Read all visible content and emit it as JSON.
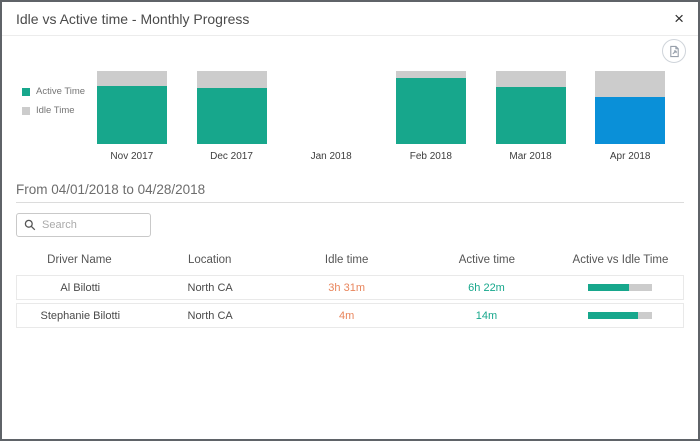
{
  "dialog": {
    "title": "Idle vs Active time - Monthly Progress",
    "close_glyph": "×"
  },
  "colors": {
    "active_teal": "#17a78c",
    "idle_gray": "#cccccc",
    "selected_blue": "#0a90d8",
    "idle_text_orange": "#e8855c"
  },
  "chart_data": {
    "type": "bar",
    "stacked": true,
    "unit": "percent of month total time (active + idle = 100%)",
    "categories": [
      "Nov 2017",
      "Dec 2017",
      "Jan 2018",
      "Feb 2018",
      "Mar 2018",
      "Apr 2018"
    ],
    "series": [
      {
        "name": "Active Time",
        "values": [
          80,
          77,
          null,
          91,
          78,
          64
        ]
      },
      {
        "name": "Idle Time",
        "values": [
          20,
          23,
          null,
          9,
          22,
          36
        ]
      }
    ],
    "selected_category": "Apr 2018",
    "legend_position": "left",
    "note": "Jan 2018 shows no bar (no data); Apr 2018 active segment is highlighted blue as the selected month"
  },
  "period": {
    "label": "From 04/01/2018 to 04/28/2018"
  },
  "search": {
    "placeholder": "Search"
  },
  "table": {
    "columns": [
      "Driver Name",
      "Location",
      "Idle time",
      "Active time",
      "Active vs Idle Time"
    ],
    "rows": [
      {
        "driver": "Al Bilotti",
        "location": "North CA",
        "idle_time": "3h 31m",
        "active_time": "6h 22m",
        "active_pct": 64
      },
      {
        "driver": "Stephanie Bilotti",
        "location": "North CA",
        "idle_time": "4m",
        "active_time": "14m",
        "active_pct": 78
      }
    ]
  },
  "icons": {
    "close": "x-cross",
    "search": "magnifier",
    "export": "export-image-in-circle"
  }
}
